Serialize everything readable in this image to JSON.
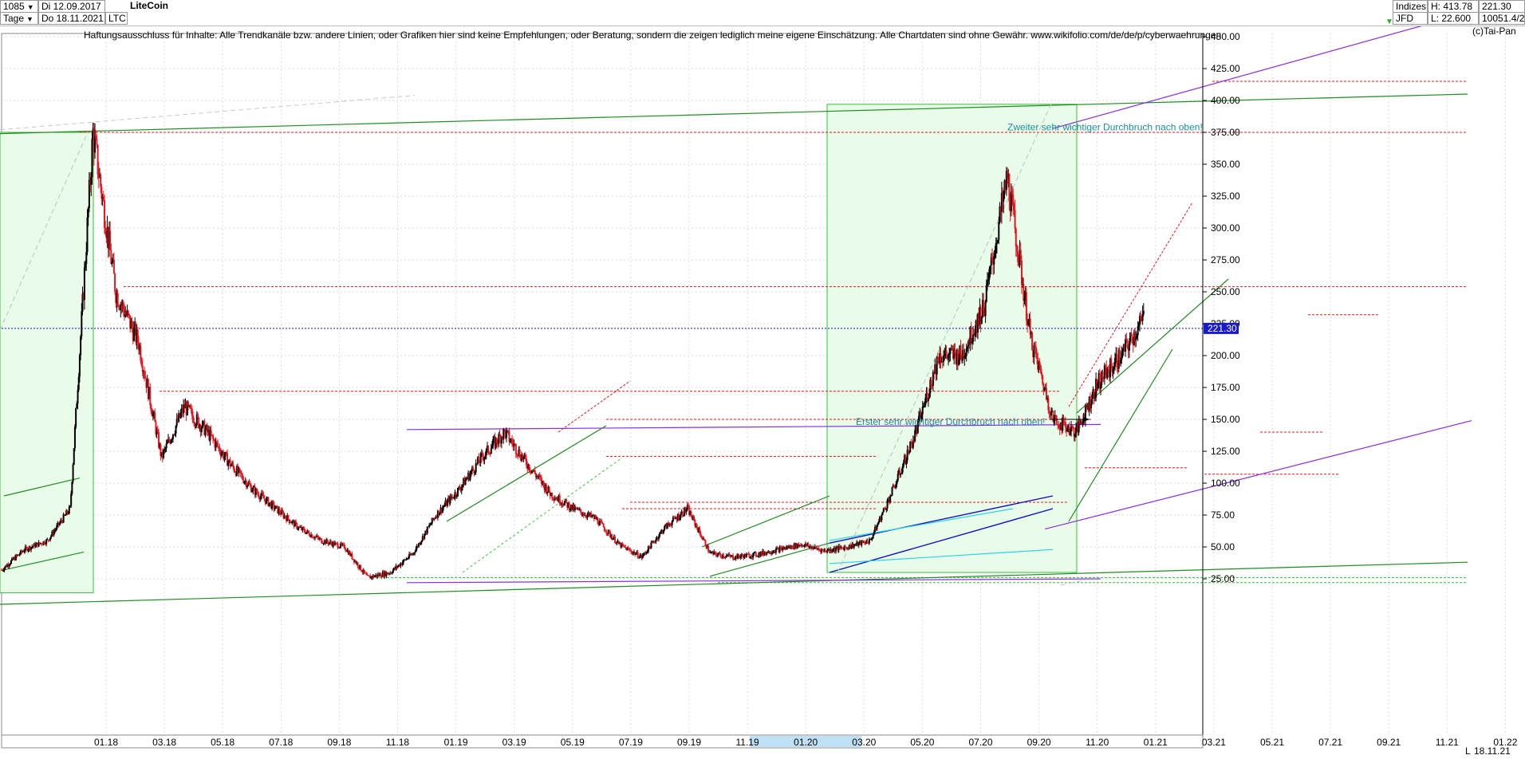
{
  "header": {
    "period_count": "1085",
    "interval": "Tage",
    "start_label": "Di 12.09.2017",
    "end_label": "Do 18.11.2021",
    "symbol": "LTC",
    "title": "LiteCoin",
    "market": "Indizes",
    "source": "JFD",
    "high_label": "H: 413.78",
    "low_label": "L: 22.600",
    "last_value": "221.30",
    "volume_label": "10051.4/2",
    "copyright": "(c)Tai-Pan"
  },
  "disclaimer": "Haftungsausschluss für Inhalte: Alle Trendkanäle bzw. andere Linien, oder Grafiken hier sind keine Empfehlungen, oder Beratung, sondern die zeigen lediglich meine eigene Einschätzung. Alle Chartdaten sind ohne Gewähr.  www.wikifolio.com/de/de/p/cyberwaehrungen",
  "annotations": {
    "first": "Erster sehr wichtiger Durchbruch nach oben!",
    "second": "Zweiter sehr wichtiger Durchbruch nach oben!"
  },
  "footer": {
    "date": "18.11.21",
    "scale_mode": "L"
  },
  "colors": {
    "up": "#000000",
    "down": "#e8161e",
    "support": "#e8161e",
    "channel": "#1f8c1f",
    "trend_purple": "#8a2be2",
    "price_line": "#1010c0",
    "box_fill": "#e9fbe9",
    "cyan": "#2ad4e6",
    "note": "#1a8f9c"
  },
  "chart_data": {
    "type": "line",
    "title": "LiteCoin",
    "subtitle": "LTC",
    "y_ticks": [
      "25.00",
      "50.00",
      "75.00",
      "100.00",
      "125.00",
      "150.00",
      "175.00",
      "200.00",
      "225.00",
      "250.00",
      "275.00",
      "300.00",
      "325.00",
      "350.00",
      "375.00",
      "400.00",
      "425.00",
      "450.00"
    ],
    "ylim": [
      14,
      464
    ],
    "x_tick_labels": [
      "01.18",
      "03.18",
      "05.18",
      "07.18",
      "09.18",
      "11.18",
      "01.19",
      "03.19",
      "05.19",
      "07.19",
      "09.19",
      "11.19",
      "01.20",
      "03.20",
      "05.20",
      "07.20",
      "09.20",
      "11.20",
      "01.21",
      "03.21",
      "05.21",
      "07.21",
      "09.21",
      "11.21",
      "01.22"
    ],
    "grid": true,
    "last_price": "221.30",
    "last_price_value": 221.3,
    "series": [
      {
        "name": "LTC",
        "x": [
          "09.17",
          "10.17",
          "11.17",
          "12.17",
          "01.18",
          "02.18",
          "03.18",
          "04.18",
          "05.18",
          "06.18",
          "07.18",
          "08.18",
          "09.18",
          "10.18",
          "11.18",
          "12.18",
          "01.19",
          "02.19",
          "03.19",
          "04.19",
          "05.19",
          "06.19",
          "07.19",
          "08.19",
          "09.19",
          "10.19",
          "11.19",
          "12.19",
          "01.20",
          "02.20",
          "03.20",
          "04.20",
          "05.20",
          "06.20",
          "07.20",
          "08.20",
          "09.20",
          "10.20",
          "11.20",
          "12.20",
          "01.21",
          "02.21",
          "03.21",
          "04.21",
          "05.21",
          "06.21",
          "07.21",
          "08.21",
          "09.21",
          "10.21",
          "11.21"
        ],
        "values": [
          32,
          48,
          55,
          80,
          375,
          250,
          210,
          120,
          160,
          140,
          115,
          95,
          80,
          65,
          55,
          50,
          26,
          30,
          45,
          75,
          95,
          120,
          140,
          115,
          92,
          80,
          72,
          52,
          42,
          65,
          80,
          45,
          42,
          44,
          48,
          52,
          47,
          50,
          55,
          95,
          140,
          200,
          200,
          240,
          340,
          215,
          150,
          140,
          180,
          200,
          230
        ]
      }
    ],
    "horizontal_levels": [
      415,
      375,
      254,
      232,
      172,
      150,
      140,
      121,
      112,
      107,
      85,
      80,
      30,
      25
    ],
    "trend_channels": [
      "purple_upper_channel",
      "purple_lower_channel",
      "green_long_term_channel",
      "green_2019_channel",
      "green_2021_channel",
      "blue_2020_channel"
    ]
  }
}
